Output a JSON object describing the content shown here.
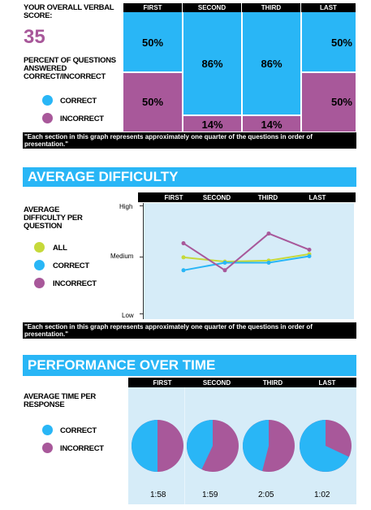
{
  "colors": {
    "correct": "#29b6f6",
    "incorrect": "#a8589a",
    "all": "#c6d93a",
    "chart_bg": "#d6ecf8"
  },
  "verbal": {
    "score_label": "YOUR OVERALL VERBAL SCORE:",
    "score": "35",
    "percent_label": "PERCENT OF QUESTIONS ANSWERED CORRECT/INCORRECT",
    "legend": {
      "correct": "CORRECT",
      "incorrect": "INCORRECT"
    },
    "sections": [
      "FIRST",
      "SECOND",
      "THIRD",
      "LAST"
    ],
    "correct_pct": [
      "50%",
      "86%",
      "86%",
      "50%"
    ],
    "incorrect_pct": [
      "50%",
      "14%",
      "14%",
      "50%"
    ],
    "note": "\"Each section in this graph represents approximately one quarter of the questions in order of presentation.\""
  },
  "difficulty": {
    "title": "AVERAGE DIFFICULTY",
    "label": "AVERAGE DIFFICULTY PER QUESTION",
    "sections": [
      "FIRST",
      "SECOND",
      "THIRD",
      "LAST"
    ],
    "legend": {
      "all": "ALL",
      "correct": "CORRECT",
      "incorrect": "INCORRECT"
    },
    "axis": {
      "high": "High",
      "medium": "Medium",
      "low": "Low"
    },
    "note": "\"Each section in this graph represents approximately one quarter of the questions in order of presentation.\""
  },
  "performance": {
    "title": "PERFORMANCE OVER TIME",
    "label": "AVERAGE TIME PER RESPONSE",
    "sections": [
      "FIRST",
      "SECOND",
      "THIRD",
      "LAST"
    ],
    "legend": {
      "correct": "CORRECT",
      "incorrect": "INCORRECT"
    },
    "times": [
      "1:58",
      "1:59",
      "2:05",
      "1:02"
    ]
  },
  "chart_data": [
    {
      "type": "bar",
      "categories": [
        "FIRST",
        "SECOND",
        "THIRD",
        "LAST"
      ],
      "series": [
        {
          "name": "CORRECT",
          "values": [
            50,
            86,
            86,
            50
          ]
        },
        {
          "name": "INCORRECT",
          "values": [
            50,
            14,
            14,
            50
          ]
        }
      ],
      "stacked": true
    },
    {
      "type": "line",
      "categories": [
        "FIRST",
        "SECOND",
        "THIRD",
        "LAST"
      ],
      "ylim_labels": [
        "Low",
        "Medium",
        "High"
      ],
      "series": [
        {
          "name": "ALL",
          "values": [
            0.52,
            0.48,
            0.49,
            0.55
          ]
        },
        {
          "name": "CORRECT",
          "values": [
            0.4,
            0.47,
            0.47,
            0.53
          ]
        },
        {
          "name": "INCORRECT",
          "values": [
            0.65,
            0.4,
            0.74,
            0.59
          ]
        }
      ]
    },
    {
      "type": "pie",
      "categories": [
        "FIRST",
        "SECOND",
        "THIRD",
        "LAST"
      ],
      "correct_share": [
        0.5,
        0.43,
        0.46,
        0.68
      ],
      "times": [
        "1:58",
        "1:59",
        "2:05",
        "1:02"
      ]
    }
  ]
}
